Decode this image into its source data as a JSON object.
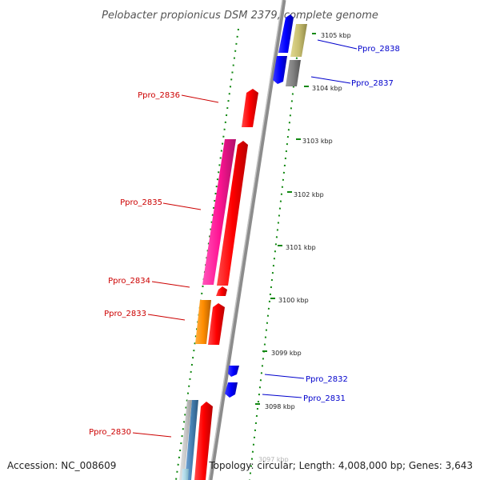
{
  "title": "Pelobacter propionicus DSM 2379, complete genome",
  "footer": {
    "accession": "Accession: NC_008609",
    "topology": "Topology: circular; Length: 4,008,000 bp; Genes: 3,643"
  },
  "colors": {
    "forward_label": "#0000cc",
    "reverse_label": "#cc0000",
    "backbone": "#8c8c8c",
    "ticks": "#118811"
  },
  "ticks": [
    {
      "label": "3105 kbp"
    },
    {
      "label": "3104 kbp"
    },
    {
      "label": "3103 kbp"
    },
    {
      "label": "3102 kbp"
    },
    {
      "label": "3101 kbp"
    },
    {
      "label": "3100 kbp"
    },
    {
      "label": "3099 kbp"
    },
    {
      "label": "3098 kbp"
    },
    {
      "label": "3097 kbp"
    }
  ],
  "gene_labels": [
    {
      "text": "Ppro_2838",
      "strand": "forward"
    },
    {
      "text": "Ppro_2837",
      "strand": "forward"
    },
    {
      "text": "Ppro_2836",
      "strand": "reverse"
    },
    {
      "text": "Ppro_2835",
      "strand": "reverse"
    },
    {
      "text": "Ppro_2834",
      "strand": "reverse"
    },
    {
      "text": "Ppro_2833",
      "strand": "reverse"
    },
    {
      "text": "Ppro_2832",
      "strand": "forward"
    },
    {
      "text": "Ppro_2831",
      "strand": "forward"
    },
    {
      "text": "Ppro_2830",
      "strand": "reverse"
    }
  ]
}
